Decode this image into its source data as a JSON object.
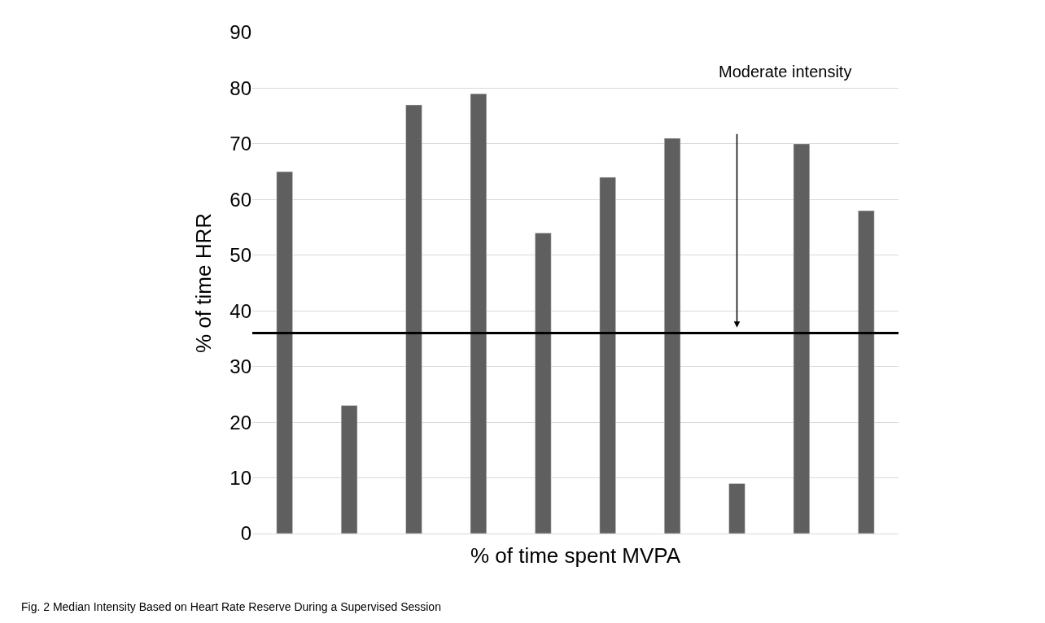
{
  "chart_data": {
    "type": "bar",
    "xlabel": "% of time spent MVPA",
    "ylabel": "% of time HRR",
    "categories": [
      null,
      null,
      null,
      null,
      null,
      null,
      null,
      null,
      null,
      null
    ],
    "values": [
      65,
      23,
      77,
      79,
      54,
      64,
      71,
      9,
      70,
      58
    ],
    "color": "#5f5f5f",
    "ylim": [
      0,
      90
    ],
    "yticks": [
      0,
      10,
      20,
      30,
      40,
      50,
      60,
      70,
      80,
      90
    ],
    "grid": "y",
    "ref_lines": [
      {
        "axis": "y",
        "value": 36,
        "label": "Moderate intensity",
        "color": "#000000"
      }
    ],
    "annotations": [
      "Fig. 2 Median Intensity Based on Heart Rate Reserve During a Supervised Session"
    ]
  }
}
